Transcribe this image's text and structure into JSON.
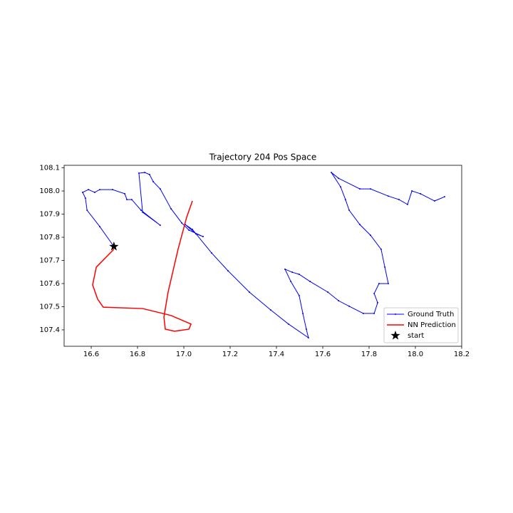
{
  "chart_data": {
    "type": "line",
    "title": "Trajectory 204 Pos Space",
    "xlim": [
      16.483,
      18.2
    ],
    "ylim": [
      107.329,
      108.111
    ],
    "xticks": [
      16.6,
      16.8,
      {
        "value": 17,
        "label": "17.0"
      },
      17.2,
      17.4,
      17.6,
      17.8,
      {
        "value": 18,
        "label": "18.0"
      },
      18.2
    ],
    "yticks": [
      107.4,
      107.5,
      107.6,
      107.7,
      107.8,
      107.9,
      {
        "value": 108,
        "label": "108.0"
      },
      108.1
    ],
    "legend": "lower right",
    "series": [
      {
        "name": "Ground Truth",
        "color": "#0000ff",
        "marker": "dot",
        "x": [
          16.698,
          16.637,
          16.582,
          16.575,
          16.563,
          16.588,
          16.615,
          16.637,
          16.692,
          16.745,
          16.754,
          16.775,
          16.815,
          16.898,
          16.822,
          16.806,
          16.831,
          16.852,
          16.868,
          16.898,
          16.945,
          16.991,
          17.022,
          17.083,
          17.052,
          17.006,
          17.037,
          17.12,
          17.191,
          17.283,
          17.375,
          17.452,
          17.538,
          17.529,
          17.514,
          17.498,
          17.462,
          17.437,
          17.468,
          17.498,
          17.545,
          17.622,
          17.668,
          17.714,
          17.775,
          17.822,
          17.837,
          17.822,
          17.843,
          17.883,
          17.868,
          17.852,
          17.806,
          17.76,
          17.714,
          17.698,
          17.677,
          17.637,
          17.668,
          17.76,
          17.806,
          17.883,
          17.929,
          17.966,
          17.985,
          18.022,
          18.083,
          18.126
        ],
        "y": [
          107.76,
          107.846,
          107.917,
          107.969,
          107.994,
          108.006,
          107.994,
          108.006,
          108.006,
          107.988,
          107.963,
          107.963,
          107.917,
          107.852,
          107.908,
          108.077,
          108.08,
          108.071,
          108.04,
          108.009,
          107.923,
          107.862,
          107.831,
          107.803,
          107.815,
          107.855,
          107.834,
          107.732,
          107.655,
          107.563,
          107.486,
          107.425,
          107.366,
          107.403,
          107.471,
          107.548,
          107.609,
          107.662,
          107.649,
          107.64,
          107.609,
          107.563,
          107.526,
          107.502,
          107.471,
          107.471,
          107.517,
          107.557,
          107.6,
          107.6,
          107.671,
          107.748,
          107.809,
          107.855,
          107.917,
          107.963,
          108.018,
          108.08,
          108.055,
          108.009,
          108.009,
          107.978,
          107.963,
          107.942,
          108.0,
          107.988,
          107.957,
          107.975
        ]
      },
      {
        "name": "NN Prediction",
        "color": "#ff0000",
        "marker": "none",
        "x": [
          16.698,
          16.622,
          16.606,
          16.628,
          16.652,
          16.822,
          16.945,
          17.031,
          17.022,
          16.96,
          16.92,
          16.914,
          16.932,
          16.975,
          17.012,
          17.037
        ],
        "y": [
          107.748,
          107.671,
          107.594,
          107.532,
          107.498,
          107.492,
          107.462,
          107.425,
          107.403,
          107.394,
          107.403,
          107.455,
          107.563,
          107.748,
          107.886,
          107.957
        ]
      },
      {
        "name": "start",
        "color": "#000000",
        "marker": "star",
        "x": [
          16.698
        ],
        "y": [
          107.76
        ]
      }
    ]
  }
}
